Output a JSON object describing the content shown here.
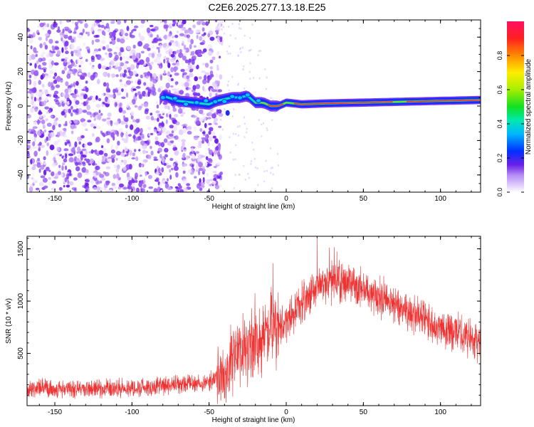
{
  "title": "C2E6.2025.277.13.18.E25",
  "colors": {
    "snr_line": "#ee3333",
    "scatter_noise": "#8a3cf0",
    "axis": "#000000"
  },
  "chart_data": [
    {
      "type": "heatmap",
      "title": "C2E6.2025.277.13.18.E25",
      "xlabel": "Height of straight line (km)",
      "ylabel": "Frequency (Hz)",
      "xlim": [
        -168,
        126
      ],
      "ylim": [
        -50,
        50
      ],
      "xticks": [
        -150,
        -100,
        -50,
        0,
        50,
        100
      ],
      "yticks": [
        -40,
        -20,
        0,
        20,
        40
      ],
      "noise_region_x": [
        -168,
        -45
      ],
      "signal_trace": [
        {
          "x": -80,
          "y": 6
        },
        {
          "x": -70,
          "y": 3
        },
        {
          "x": -60,
          "y": 2
        },
        {
          "x": -50,
          "y": 1
        },
        {
          "x": -45,
          "y": 3
        },
        {
          "x": -40,
          "y": 4
        },
        {
          "x": -35,
          "y": 5
        },
        {
          "x": -30,
          "y": 5
        },
        {
          "x": -25,
          "y": 6
        },
        {
          "x": -20,
          "y": 2
        },
        {
          "x": -15,
          "y": 2
        },
        {
          "x": -10,
          "y": 0
        },
        {
          "x": -5,
          "y": 0
        },
        {
          "x": 0,
          "y": 2
        },
        {
          "x": 10,
          "y": 1
        },
        {
          "x": 25,
          "y": 1.5
        },
        {
          "x": 50,
          "y": 2
        },
        {
          "x": 75,
          "y": 2.5
        },
        {
          "x": 100,
          "y": 3
        },
        {
          "x": 126,
          "y": 3.5
        }
      ],
      "colorbar": {
        "label": "Normalized spectral amplitude",
        "range": [
          0,
          1
        ],
        "ticks": [
          "0.0",
          "0.2",
          "0.4",
          "0.6",
          "0.8"
        ]
      }
    },
    {
      "type": "line",
      "xlabel": "Height of straight line (km)",
      "ylabel": "SNR (10 * v/v)",
      "xlim": [
        -168,
        126
      ],
      "ylim": [
        0,
        1620
      ],
      "xticks": [
        -150,
        -100,
        -50,
        0,
        50,
        100
      ],
      "yticks": [
        500,
        1000,
        1500
      ],
      "series": [
        {
          "name": "SNR",
          "envelope_x": [
            -168,
            -150,
            -125,
            -100,
            -75,
            -50,
            -40,
            -35,
            -30,
            -20,
            -10,
            0,
            10,
            20,
            30,
            40,
            50,
            60,
            70,
            80,
            90,
            100,
            110,
            120,
            126
          ],
          "envelope_y": [
            170,
            160,
            160,
            170,
            190,
            230,
            280,
            450,
            560,
            600,
            680,
            800,
            980,
            1120,
            1180,
            1170,
            1120,
            1050,
            980,
            900,
            820,
            760,
            700,
            650,
            620
          ]
        }
      ]
    }
  ]
}
